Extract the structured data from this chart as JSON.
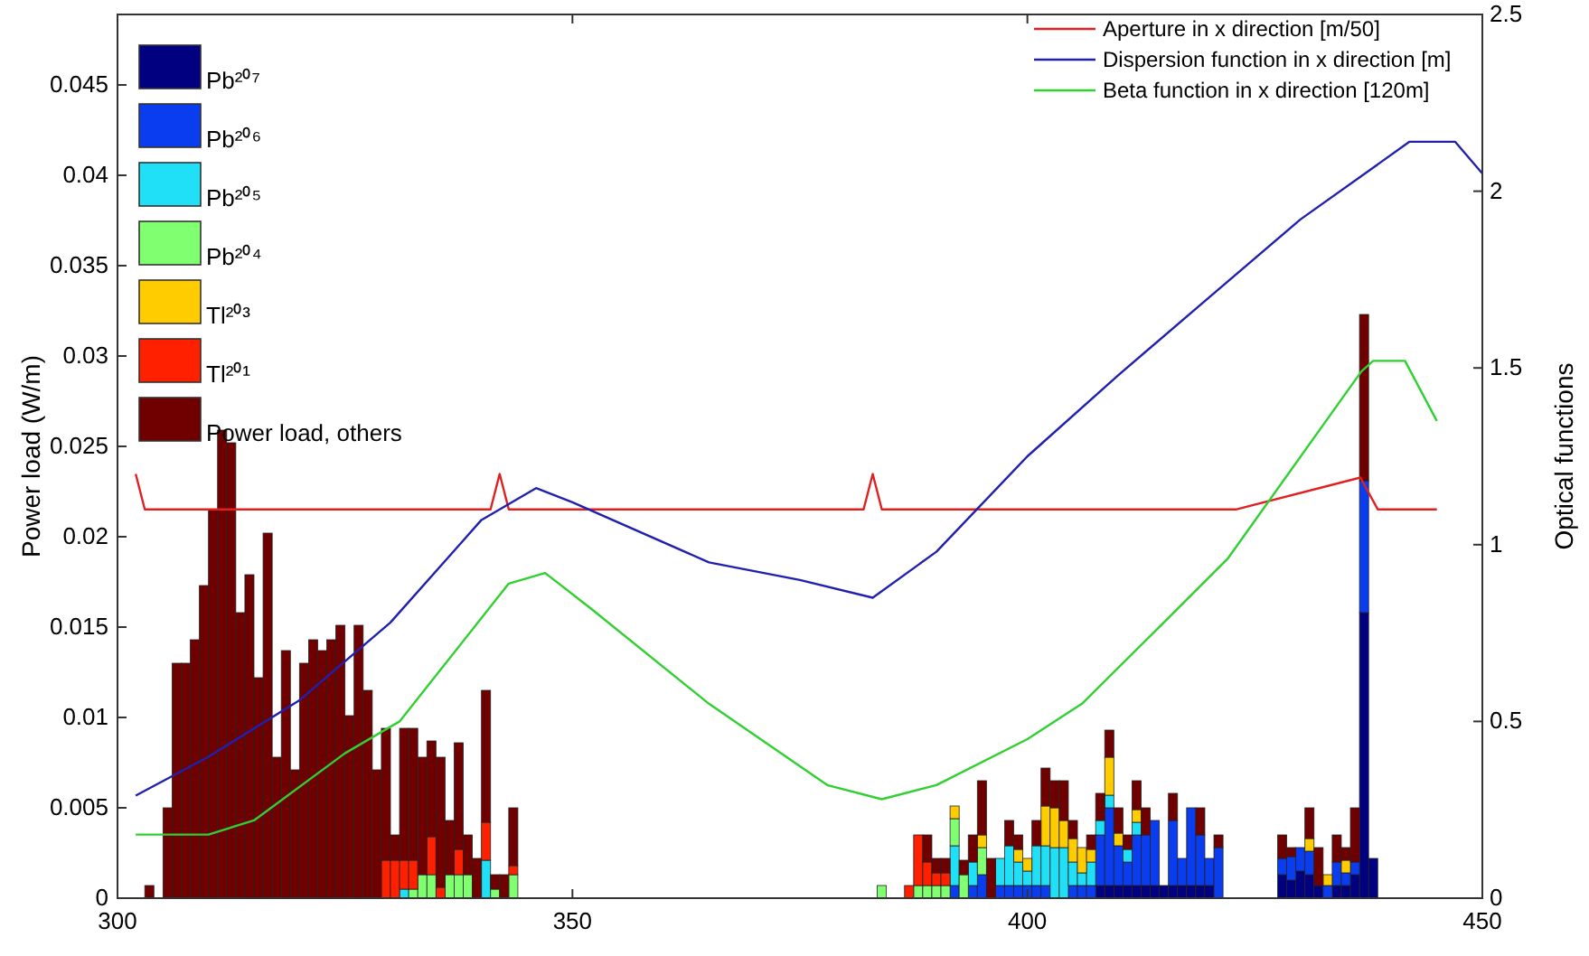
{
  "chart_data": {
    "type": "bar",
    "stacked": true,
    "ylabel": "Power load (W/m)",
    "y2label": "Optical functions",
    "legend": "top left",
    "xlim": [
      300,
      450
    ],
    "xticks": [
      300,
      350,
      400,
      450
    ],
    "ylim": [
      0,
      0.0489
    ],
    "yticks": [
      0,
      0.005,
      0.01,
      0.015,
      0.02,
      0.025,
      0.03,
      0.035,
      0.04,
      0.045
    ],
    "y2lim": [
      0,
      2.5
    ],
    "y2ticks": [
      0,
      0.5,
      1,
      1.5,
      2,
      2.5
    ],
    "x": [
      303.5,
      305.5,
      306.5,
      307.5,
      308.5,
      309.5,
      310.5,
      311.5,
      312.5,
      313.5,
      314.5,
      315.5,
      316.5,
      317.5,
      318.5,
      319.5,
      320.5,
      321.5,
      322.5,
      323.5,
      324.5,
      325.5,
      326.5,
      327.5,
      328.5,
      329.5,
      330.5,
      331.5,
      332.5,
      333.5,
      334.5,
      335.5,
      336.5,
      337.5,
      338.5,
      339.5,
      340.5,
      341.5,
      342.5,
      343.5,
      384,
      387,
      388,
      389,
      390,
      391,
      392,
      393,
      394,
      395,
      396,
      397,
      398,
      399,
      400,
      401,
      402,
      403,
      404,
      405,
      406,
      407,
      408,
      409,
      410,
      411,
      412,
      413,
      414,
      415,
      416,
      417,
      418,
      419,
      420,
      421,
      428,
      429,
      430,
      431,
      432,
      433,
      434,
      435,
      436,
      437,
      438
    ],
    "series": [
      {
        "name": "Pb²⁰⁷",
        "color": "#000080",
        "values": [
          null,
          null,
          null,
          null,
          null,
          null,
          null,
          null,
          null,
          null,
          null,
          null,
          null,
          null,
          null,
          null,
          null,
          null,
          null,
          null,
          null,
          null,
          null,
          null,
          null,
          null,
          null,
          null,
          null,
          null,
          null,
          null,
          null,
          null,
          null,
          null,
          null,
          null,
          null,
          null,
          null,
          null,
          null,
          null,
          null,
          null,
          null,
          null,
          null,
          null,
          null,
          null,
          null,
          null,
          null,
          null,
          null,
          null,
          null,
          null,
          null,
          null,
          0.0007,
          0.0007,
          0.0007,
          0.0007,
          0.0007,
          0.0007,
          0.0007,
          0.0007,
          0.0007,
          0.0007,
          0.0007,
          0.0007,
          0.0007,
          null,
          0.0013,
          0.001,
          0.0015,
          0.0013,
          0.0007,
          null,
          0.0007,
          0.0007,
          0.0013,
          0.0158,
          0.0022
        ]
      },
      {
        "name": "Pb²⁰⁶",
        "color": "#0a3cf0",
        "values": [
          null,
          null,
          null,
          null,
          null,
          null,
          null,
          null,
          null,
          null,
          null,
          null,
          null,
          null,
          null,
          null,
          null,
          null,
          null,
          null,
          null,
          null,
          null,
          null,
          null,
          null,
          null,
          null,
          null,
          null,
          null,
          null,
          null,
          null,
          null,
          null,
          null,
          null,
          null,
          null,
          null,
          null,
          null,
          null,
          null,
          null,
          0.0007,
          null,
          0.0007,
          0.0013,
          null,
          0.0007,
          0.0007,
          0.0007,
          0.0007,
          0.0007,
          0.0007,
          null,
          null,
          0.0007,
          0.0007,
          0.0007,
          0.0028,
          0.0043,
          0.0022,
          0.0013,
          0.0028,
          0.0028,
          0.0036,
          null,
          0.0036,
          0.0015,
          0.0043,
          0.0028,
          0.0015,
          0.0028,
          0.0009,
          0.0013,
          0.0013,
          0.0013,
          null,
          0.0007,
          0.0013,
          0.0007,
          0.0007,
          0.0073,
          null
        ]
      },
      {
        "name": "Pb²⁰⁵",
        "color": "#20e0f8",
        "values": [
          null,
          null,
          null,
          null,
          null,
          null,
          null,
          null,
          null,
          null,
          null,
          null,
          null,
          null,
          null,
          null,
          null,
          null,
          null,
          null,
          null,
          null,
          null,
          null,
          null,
          null,
          null,
          0.0005,
          null,
          null,
          null,
          null,
          null,
          null,
          null,
          null,
          0.0021,
          null,
          null,
          null,
          null,
          null,
          null,
          null,
          null,
          null,
          0.0022,
          null,
          0.0013,
          null,
          null,
          0.0015,
          0.0022,
          0.0013,
          0.0008,
          0.0022,
          0.0022,
          0.0028,
          0.0028,
          0.0013,
          0.0007,
          0.0013,
          0.0008,
          0.0007,
          null,
          0.0007,
          0.0007,
          null,
          null,
          null,
          null,
          null,
          null,
          null,
          null,
          null,
          null,
          null,
          null,
          null,
          null,
          null,
          null,
          null,
          null,
          null,
          null
        ]
      },
      {
        "name": "Pb²⁰⁴",
        "color": "#80ff70",
        "values": [
          null,
          null,
          null,
          null,
          null,
          null,
          null,
          null,
          null,
          null,
          null,
          null,
          null,
          null,
          null,
          null,
          null,
          null,
          null,
          null,
          null,
          null,
          null,
          null,
          null,
          null,
          null,
          null,
          0.0005,
          0.0013,
          0.0013,
          null,
          0.0013,
          0.0013,
          0.0013,
          null,
          null,
          0.0005,
          null,
          0.0013,
          0.0007,
          null,
          0.0007,
          0.0007,
          0.0007,
          0.0007,
          0.0015,
          0.0013,
          null,
          0.0015,
          null,
          null,
          null,
          null,
          null,
          null,
          null,
          null,
          null,
          null,
          null,
          null,
          null,
          null,
          null,
          null,
          null,
          null,
          null,
          null,
          null,
          null,
          null,
          null,
          null,
          null,
          null,
          null,
          null,
          null,
          null,
          null,
          null,
          null,
          null,
          null,
          null
        ]
      },
      {
        "name": "Tl²⁰³",
        "color": "#ffcc00",
        "values": [
          null,
          null,
          null,
          null,
          null,
          null,
          null,
          null,
          null,
          null,
          null,
          null,
          null,
          null,
          null,
          null,
          null,
          null,
          null,
          null,
          null,
          null,
          null,
          null,
          null,
          null,
          null,
          null,
          null,
          null,
          null,
          null,
          null,
          null,
          null,
          null,
          null,
          null,
          null,
          null,
          null,
          null,
          null,
          null,
          null,
          null,
          0.0007,
          null,
          null,
          0.0007,
          null,
          null,
          null,
          0.0007,
          0.0007,
          null,
          0.0022,
          0.0022,
          0.0015,
          0.0013,
          0.0014,
          0.0007,
          null,
          0.0021,
          0.0007,
          null,
          0.0007,
          null,
          null,
          null,
          null,
          null,
          null,
          null,
          null,
          null,
          null,
          null,
          null,
          0.0007,
          null,
          0.0006,
          null,
          0.0007,
          null,
          null,
          null
        ]
      },
      {
        "name": "Tl²⁰¹",
        "color": "#ff2000",
        "values": [
          null,
          null,
          null,
          null,
          null,
          null,
          null,
          null,
          null,
          null,
          null,
          null,
          null,
          null,
          null,
          null,
          null,
          null,
          null,
          null,
          null,
          null,
          null,
          null,
          null,
          0.0021,
          0.0021,
          0.0016,
          0.0016,
          null,
          0.0021,
          0.0006,
          null,
          0.0014,
          null,
          null,
          0.0021,
          null,
          null,
          0.0005,
          null,
          0.0007,
          0.0028,
          0.0013,
          0.0007,
          0.0007,
          null,
          null,
          null,
          null,
          null,
          null,
          null,
          null,
          null,
          null,
          null,
          null,
          null,
          null,
          null,
          null,
          null,
          null,
          null,
          null,
          null,
          null,
          null,
          null,
          null,
          null,
          null,
          null,
          null,
          null,
          null,
          null,
          null,
          null,
          null,
          null,
          null,
          null,
          null,
          null,
          null
        ]
      },
      {
        "name": "Power load, others",
        "color": "#700000",
        "values": [
          0.0007,
          0.005,
          0.013,
          0.013,
          0.0143,
          0.0173,
          0.0215,
          0.0259,
          0.0252,
          0.0158,
          0.0179,
          0.0122,
          0.0202,
          0.0078,
          0.0137,
          0.0071,
          0.013,
          0.0143,
          0.0137,
          0.0143,
          0.0151,
          0.0101,
          0.0151,
          0.0115,
          0.0071,
          0.0073,
          0.0014,
          0.0073,
          0.0073,
          0.0065,
          0.0053,
          0.0072,
          0.003,
          0.0059,
          0.0022,
          0.0022,
          0.0073,
          0.0008,
          0.0013,
          0.0032,
          null,
          null,
          null,
          0.0015,
          0.0008,
          0.0008,
          null,
          0.0008,
          0.0015,
          0.003,
          0.0022,
          null,
          0.0014,
          0.0008,
          null,
          0.0014,
          0.0021,
          0.0015,
          0.0022,
          0.001,
          null,
          0.0008,
          0.0015,
          0.0015,
          0.0014,
          0.0008,
          0.0016,
          0.0015,
          null,
          null,
          0.0015,
          null,
          null,
          0.0015,
          null,
          0.0007,
          0.0013,
          0.0005,
          null,
          0.0017,
          0.0021,
          null,
          0.0015,
          0.0007,
          0.003,
          0.0092,
          null
        ]
      },
      {
        "name": "Aperture in x direction [m/50]",
        "type": "line",
        "axis": "y2",
        "color": "#e02020",
        "x": [
          302,
          303,
          341,
          342,
          343,
          382,
          383,
          384,
          423,
          436.6,
          438.5,
          445
        ],
        "values": [
          1.2,
          1.1,
          1.1,
          1.2,
          1.1,
          1.1,
          1.2,
          1.1,
          1.1,
          1.19,
          1.1,
          1.1
        ]
      },
      {
        "name": "Dispersion function in x direction [m]",
        "type": "line",
        "axis": "y2",
        "color": "#2020b0",
        "x": [
          302,
          310,
          320,
          330,
          340,
          346,
          350,
          365,
          375,
          383,
          390,
          400,
          410,
          420,
          430,
          442,
          447,
          450
        ],
        "values": [
          0.29,
          0.4,
          0.56,
          0.78,
          1.07,
          1.16,
          1.12,
          0.95,
          0.9,
          0.85,
          0.98,
          1.25,
          1.48,
          1.7,
          1.92,
          2.14,
          2.14,
          2.05
        ]
      },
      {
        "name": "Beta function in x direction [120m]",
        "type": "line",
        "axis": "y2",
        "color": "#30d030",
        "x": [
          302,
          310,
          315,
          325,
          331,
          343,
          347,
          352,
          365,
          378,
          384,
          390,
          400,
          406,
          415,
          422,
          436.7,
          438,
          441.5,
          445
        ],
        "values": [
          0.18,
          0.18,
          0.22,
          0.41,
          0.5,
          0.89,
          0.92,
          0.82,
          0.55,
          0.32,
          0.28,
          0.32,
          0.45,
          0.55,
          0.78,
          0.96,
          1.49,
          1.52,
          1.52,
          1.35
        ]
      }
    ]
  }
}
